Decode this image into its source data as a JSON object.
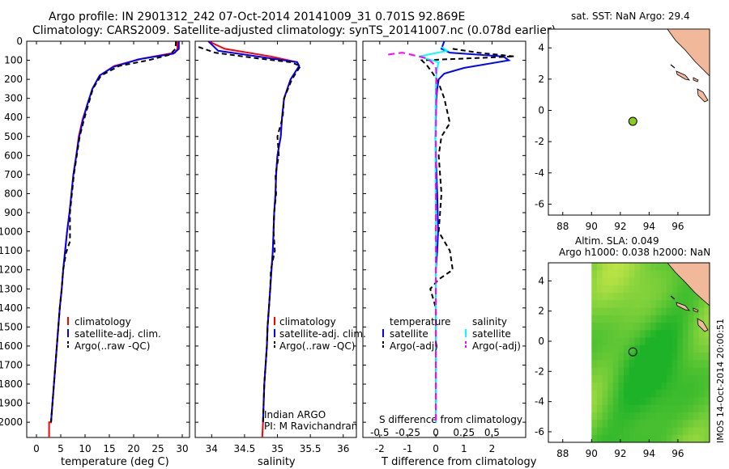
{
  "header": {
    "line1": "Argo profile: IN 2901312_242 07-Oct-2014 20141009_31 0.701S 92.869E",
    "line2": "Climatology: CARS2009. Satellite-adjusted climatology: synTS_20141007.nc (0.078d earlier)"
  },
  "colors": {
    "climatology": "#ff0000",
    "satellite": "#0000ff",
    "argo": "#000000",
    "sat_salinity": "#00ffff",
    "argo_salinity": "#ff00ff",
    "marker": "#88cc22",
    "land": "#f2b89a",
    "field_base": "#58c838"
  },
  "depth_axis": {
    "ticks": [
      0,
      100,
      200,
      300,
      400,
      500,
      600,
      700,
      800,
      900,
      1000,
      1100,
      1200,
      1300,
      1400,
      1500,
      1600,
      1700,
      1800,
      1900,
      2000
    ]
  },
  "chart_data": [
    {
      "type": "line",
      "id": "temperature",
      "xlabel": "temperature (deg C)",
      "xlim": [
        -2,
        31.5
      ],
      "ylim": [
        2080,
        0
      ],
      "xticks": [
        0,
        5,
        10,
        15,
        20,
        25,
        30
      ],
      "legend": [
        "climatology",
        "satellite-adj. clim.",
        "Argo(..raw -QC)"
      ],
      "series": [
        {
          "name": "climatology",
          "color": "#ff0000",
          "dash": "",
          "x": [
            29,
            29,
            28.5,
            22,
            16,
            13,
            11.5,
            10.5,
            9.5,
            8.7,
            8.2,
            7.6,
            7.2,
            6.8,
            6.3,
            5.9,
            5.5,
            5.2,
            4.8,
            4.5,
            4.2,
            3.9,
            3.6,
            3.3,
            3,
            2.6,
            2.6
          ],
          "y": [
            0,
            40,
            60,
            90,
            130,
            180,
            250,
            330,
            410,
            500,
            600,
            700,
            800,
            900,
            1000,
            1100,
            1200,
            1300,
            1400,
            1500,
            1600,
            1700,
            1800,
            1900,
            2000,
            2000,
            2080
          ]
        },
        {
          "name": "satellite-adj. clim.",
          "color": "#0000ff",
          "dash": "",
          "x": [
            29.3,
            29.3,
            28.2,
            21,
            15.8,
            13,
            11.5,
            10.5,
            9.6,
            8.8,
            8.2,
            7.6,
            7.2,
            6.8,
            6.3,
            5.9,
            5.5,
            5.2,
            4.8,
            4.5,
            4.2,
            3.9,
            3.6,
            3.3,
            3
          ],
          "y": [
            0,
            40,
            65,
            95,
            135,
            180,
            250,
            330,
            410,
            500,
            600,
            700,
            800,
            900,
            1000,
            1100,
            1200,
            1300,
            1400,
            1500,
            1600,
            1700,
            1800,
            1900,
            2000
          ]
        },
        {
          "name": "Argo(..raw -QC)",
          "color": "#000000",
          "dash": "6,4",
          "x": [
            28.7,
            28.6,
            27.5,
            23,
            17,
            13.3,
            11.6,
            10.7,
            9.8,
            8.9,
            8.3,
            7.7,
            7.3,
            6.9,
            6.9,
            6.1,
            5.5,
            5.2,
            4.8,
            4.5,
            4.2,
            3.9,
            3.6,
            3.3,
            3
          ],
          "y": [
            0,
            40,
            70,
            100,
            130,
            180,
            250,
            330,
            410,
            500,
            600,
            700,
            800,
            900,
            1050,
            1110,
            1200,
            1300,
            1400,
            1500,
            1600,
            1700,
            1800,
            1900,
            2000
          ]
        }
      ]
    },
    {
      "type": "line",
      "id": "salinity",
      "xlabel": "salinity",
      "xlim": [
        33.75,
        36.2
      ],
      "ylim": [
        2080,
        0
      ],
      "xticks": [
        34,
        34.5,
        35,
        35.5,
        36
      ],
      "legend": [
        "climatology",
        "satellite-adj. clim.",
        "Argo(..raw -QC)"
      ],
      "annotations": [
        "Indian ARGO",
        "PI: M Ravichandran"
      ],
      "series": [
        {
          "name": "climatology",
          "color": "#ff0000",
          "dash": "",
          "x": [
            33.95,
            34.2,
            34.9,
            35.3,
            35.33,
            35.2,
            35.1,
            35.07,
            35.05,
            35,
            34.98,
            34.97,
            34.95,
            34.94,
            34.93,
            34.91,
            34.89,
            34.87,
            34.85,
            34.84,
            34.82,
            34.8,
            34.79,
            34.78,
            34.77
          ],
          "y": [
            0,
            40,
            80,
            110,
            130,
            200,
            300,
            400,
            500,
            600,
            700,
            800,
            900,
            1000,
            1100,
            1200,
            1300,
            1400,
            1500,
            1600,
            1700,
            1800,
            1900,
            2000,
            2080
          ]
        },
        {
          "name": "satellite-adj. clim.",
          "color": "#0000ff",
          "dash": "",
          "x": [
            33.95,
            34.1,
            34.8,
            35.3,
            35.33,
            35.2,
            35.1,
            35.07,
            35.05,
            35,
            34.98,
            34.97,
            34.95,
            34.94,
            34.93,
            34.91,
            34.89,
            34.87,
            34.85,
            34.84,
            34.82,
            34.8,
            34.79,
            34.78
          ],
          "y": [
            0,
            50,
            85,
            110,
            130,
            200,
            300,
            400,
            500,
            600,
            700,
            800,
            900,
            1000,
            1100,
            1200,
            1300,
            1400,
            1500,
            1600,
            1700,
            1800,
            1900,
            2000
          ]
        },
        {
          "name": "Argo(..raw -QC)",
          "color": "#000000",
          "dash": "6,4",
          "x": [
            33.8,
            34.05,
            34.7,
            35.2,
            35.35,
            35.22,
            35.1,
            35.08,
            35,
            35.02,
            34.97,
            34.98,
            34.95,
            34.94,
            34.96,
            34.9,
            34.89,
            34.87,
            34.85,
            34.84,
            34.82,
            34.8,
            34.79,
            34.78
          ],
          "y": [
            30,
            60,
            90,
            110,
            130,
            200,
            300,
            400,
            500,
            600,
            700,
            800,
            900,
            1000,
            1100,
            1200,
            1300,
            1400,
            1500,
            1600,
            1700,
            1800,
            1900,
            2000
          ]
        }
      ]
    },
    {
      "type": "line",
      "id": "difference",
      "xlabel": "T difference from climatology",
      "xlabel_top": "S difference from climatology",
      "xlim": [
        -2.6,
        3.2
      ],
      "ylim": [
        2080,
        0
      ],
      "xticks": [
        -2,
        -1,
        0,
        1,
        2
      ],
      "xticks_top": [
        "-0.5",
        "-0.25",
        "0",
        "0.25",
        "0.5"
      ],
      "legend_titles": [
        "temperature",
        "salinity"
      ],
      "legend": [
        "satellite",
        "Argo(-adj)",
        "satellite",
        "Argo(-adj)"
      ],
      "series": [
        {
          "name": "temperature satellite",
          "color": "#0000ff",
          "dash": "",
          "x": [
            0.3,
            0.2,
            0.5,
            2.4,
            2.6,
            1,
            0.3,
            0.1,
            0.05,
            0.02,
            0,
            -0.02,
            0,
            0.05,
            0.08,
            0.05,
            0,
            0,
            0,
            0,
            0,
            0
          ],
          "y": [
            0,
            40,
            60,
            80,
            100,
            140,
            170,
            200,
            250,
            300,
            400,
            500,
            600,
            800,
            1000,
            1100,
            1200,
            1400,
            1600,
            1800,
            1900,
            2000
          ]
        },
        {
          "name": "temperature Argo(-adj)",
          "color": "#000000",
          "dash": "6,4",
          "x": [
            0.6,
            1.5,
            2.8,
            -0.5,
            -0.3,
            -0.1,
            0.1,
            0.3,
            0.5,
            0.2,
            0.1,
            0.2,
            0.1,
            0.5,
            0.6,
            0.1,
            -0.2,
            0,
            0,
            0
          ],
          "y": [
            40,
            60,
            80,
            100,
            130,
            170,
            220,
            300,
            430,
            500,
            600,
            800,
            1000,
            1100,
            1200,
            1250,
            1300,
            1400,
            1700,
            2000
          ]
        },
        {
          "name": "salinity satellite",
          "color": "#00ffff",
          "dash": "",
          "x": [
            0.2,
            0.4,
            -0.6,
            0.1,
            0.05,
            0,
            -0.02,
            0,
            0,
            0
          ],
          "y": [
            30,
            50,
            80,
            110,
            140,
            200,
            500,
            1000,
            1500,
            2000
          ]
        },
        {
          "name": "salinity Argo(-adj)",
          "color": "#ff00ff",
          "dash": "8,5",
          "x": [
            -1.7,
            -1.2,
            -0.3,
            0,
            0.02,
            0,
            0,
            0
          ],
          "y": [
            70,
            60,
            90,
            130,
            200,
            500,
            1000,
            2000
          ]
        }
      ]
    },
    {
      "type": "scatter",
      "id": "sst_map",
      "title": "sat. SST: NaN  Argo: 29.4",
      "xlim": [
        87,
        98.2
      ],
      "ylim": [
        -6.7,
        5.2
      ],
      "xticks": [
        88,
        90,
        92,
        94,
        96
      ],
      "yticks": [
        -6,
        -4,
        -2,
        0,
        2,
        4
      ],
      "points": [
        {
          "x": 92.869,
          "y": -0.701
        }
      ]
    },
    {
      "type": "heatmap",
      "id": "sla_map",
      "title_line1": "Altim. SLA: 0.049",
      "title_line2": "Argo h1000: 0.038 h2000: NaN",
      "xlim": [
        87,
        98.2
      ],
      "ylim": [
        -6.7,
        5.2
      ],
      "xticks": [
        88,
        90,
        92,
        94,
        96
      ],
      "yticks": [
        -6,
        -4,
        -2,
        0,
        2,
        4
      ],
      "data_lon_start": 90,
      "points": [
        {
          "x": 92.869,
          "y": -0.701
        }
      ]
    }
  ],
  "credit": "IMOS 14-Oct-2014 20:00:51"
}
